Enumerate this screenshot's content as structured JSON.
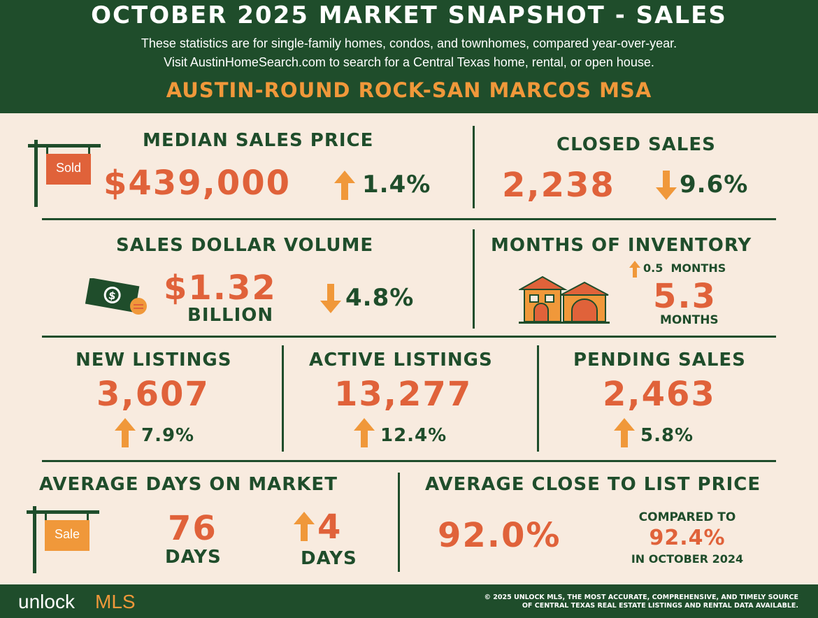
{
  "header": {
    "title": "OCTOBER 2025 MARKET SNAPSHOT - SALES",
    "subtitle_line1": "These statistics are for single-family homes, condos, and townhomes, compared year-over-year.",
    "subtitle_line2": "Visit AustinHomeSearch.com to search for a Central Texas home, rental, or open house.",
    "region": "AUSTIN-ROUND ROCK-SAN MARCOS MSA"
  },
  "median_sales_price": {
    "label": "MEDIAN SALES PRICE",
    "value": "$439,000",
    "change": "1.4%",
    "direction": "up",
    "sign_text": "Sold"
  },
  "closed_sales": {
    "label": "CLOSED SALES",
    "value": "2,238",
    "change": "9.6%",
    "direction": "down"
  },
  "sales_dollar_volume": {
    "label": "SALES DOLLAR VOLUME",
    "value": "$1.32",
    "unit": "BILLION",
    "change": "4.8%",
    "direction": "down"
  },
  "months_of_inventory": {
    "label": "MONTHS OF INVENTORY",
    "change": "0.5  MONTHS",
    "direction": "up",
    "value": "5.3",
    "unit": "MONTHS"
  },
  "new_listings": {
    "label": "NEW LISTINGS",
    "value": "3,607",
    "change": "7.9%",
    "direction": "up"
  },
  "active_listings": {
    "label": "ACTIVE LISTINGS",
    "value": "13,277",
    "change": "12.4%",
    "direction": "up"
  },
  "pending_sales": {
    "label": "PENDING SALES",
    "value": "2,463",
    "change": "5.8%",
    "direction": "up"
  },
  "average_days_on_market": {
    "label": "AVERAGE DAYS ON MARKET",
    "value": "76",
    "unit": "DAYS",
    "change": "4",
    "change_unit": "DAYS",
    "direction": "up",
    "sign_text": "Sale"
  },
  "average_close_to_list": {
    "label": "AVERAGE CLOSE TO LIST PRICE",
    "value": "92.0%",
    "compare_label": "COMPARED TO",
    "compare_value": "92.4%",
    "compare_period": "IN OCTOBER 2024"
  },
  "footer": {
    "logo_part1": "unlock",
    "logo_part2": "MLS",
    "copyright_line1": "© 2025 UNLOCK MLS, THE MOST ACCURATE, COMPREHENSIVE, AND TIMELY SOURCE",
    "copyright_line2": "OF CENTRAL TEXAS REAL ESTATE LISTINGS AND RENTAL DATA AVAILABLE."
  },
  "colors": {
    "green": "#1f4d2b",
    "orange": "#e0623a",
    "amber": "#f0983a",
    "background": "#f8ebdf"
  },
  "icons": [
    "sold-sign-icon",
    "money-icon",
    "houses-icon",
    "sale-sign-icon",
    "arrow-up-icon",
    "arrow-down-icon"
  ]
}
